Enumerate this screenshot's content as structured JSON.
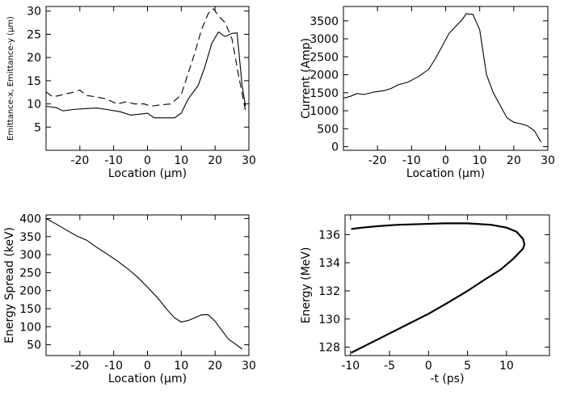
{
  "chart_data": [
    {
      "type": "line",
      "title": "",
      "xlabel": "Location (μm)",
      "ylabel": "Emittance-x, Emittance-y (μm)",
      "xlim": [
        -30,
        30
      ],
      "ylim": [
        0,
        31
      ],
      "xticks": [
        -20,
        -10,
        0,
        10,
        20,
        30
      ],
      "yticks": [
        5,
        10,
        15,
        20,
        25,
        30
      ],
      "grid": false,
      "series": [
        {
          "style": "solid",
          "points": [
            [
              -30,
              9.5
            ],
            [
              -27,
              9.2
            ],
            [
              -25,
              8.5
            ],
            [
              -22,
              8.8
            ],
            [
              -18,
              9
            ],
            [
              -15,
              9.1
            ],
            [
              -12,
              8.8
            ],
            [
              -8,
              8.3
            ],
            [
              -5,
              7.6
            ],
            [
              -2,
              7.8
            ],
            [
              0,
              8
            ],
            [
              2,
              7
            ],
            [
              5,
              7
            ],
            [
              8,
              7
            ],
            [
              10,
              8
            ],
            [
              12,
              11
            ],
            [
              15,
              14
            ],
            [
              17,
              18
            ],
            [
              19,
              23
            ],
            [
              21,
              25.5
            ],
            [
              23,
              24.5
            ],
            [
              25,
              25.2
            ],
            [
              26.5,
              25.3
            ],
            [
              28,
              14
            ],
            [
              29,
              9.5
            ]
          ]
        },
        {
          "style": "dashed",
          "points": [
            [
              -30,
              12.6
            ],
            [
              -28,
              11.5
            ],
            [
              -25,
              12
            ],
            [
              -22,
              12.5
            ],
            [
              -20,
              13
            ],
            [
              -18,
              11.8
            ],
            [
              -15,
              11.5
            ],
            [
              -12,
              11
            ],
            [
              -9,
              10
            ],
            [
              -6,
              10.5
            ],
            [
              -4,
              10
            ],
            [
              -1,
              10
            ],
            [
              1,
              9.5
            ],
            [
              4,
              9.8
            ],
            [
              7,
              10
            ],
            [
              10,
              12
            ],
            [
              12,
              16.5
            ],
            [
              14,
              21
            ],
            [
              16,
              26
            ],
            [
              18,
              29.5
            ],
            [
              19.5,
              30.5
            ],
            [
              21,
              29
            ],
            [
              23,
              27.5
            ],
            [
              25,
              24
            ],
            [
              27,
              16
            ],
            [
              29,
              8.5
            ]
          ]
        }
      ]
    },
    {
      "type": "line",
      "title": "",
      "xlabel": "Location (μm)",
      "ylabel": "Current (Amp)",
      "xlim": [
        -30,
        30
      ],
      "ylim": [
        -100,
        3900
      ],
      "xticks": [
        -20,
        -10,
        0,
        10,
        20,
        30
      ],
      "yticks": [
        0,
        500,
        1000,
        1500,
        2000,
        2500,
        3000,
        3500
      ],
      "grid": false,
      "series": [
        {
          "style": "solid",
          "points": [
            [
              -30,
              1350
            ],
            [
              -28,
              1400
            ],
            [
              -26,
              1480
            ],
            [
              -24,
              1450
            ],
            [
              -21,
              1520
            ],
            [
              -18,
              1560
            ],
            [
              -16,
              1620
            ],
            [
              -14,
              1720
            ],
            [
              -11,
              1800
            ],
            [
              -8,
              1950
            ],
            [
              -5,
              2150
            ],
            [
              -3,
              2450
            ],
            [
              -1,
              2800
            ],
            [
              1,
              3150
            ],
            [
              3,
              3350
            ],
            [
              5,
              3550
            ],
            [
              6,
              3700
            ],
            [
              8,
              3680
            ],
            [
              10,
              3250
            ],
            [
              12,
              2000
            ],
            [
              14,
              1500
            ],
            [
              16,
              1150
            ],
            [
              18,
              800
            ],
            [
              20,
              680
            ],
            [
              22,
              640
            ],
            [
              24,
              580
            ],
            [
              26,
              450
            ],
            [
              28,
              130
            ]
          ]
        }
      ]
    },
    {
      "type": "line",
      "title": "",
      "xlabel": "Location (μm)",
      "ylabel": "Energy Spread (keV)",
      "xlim": [
        -30,
        30
      ],
      "ylim": [
        20,
        410
      ],
      "xticks": [
        -20,
        -10,
        0,
        10,
        20,
        30
      ],
      "yticks": [
        50,
        100,
        150,
        200,
        250,
        300,
        350,
        400
      ],
      "grid": false,
      "series": [
        {
          "style": "solid",
          "points": [
            [
              -30,
              400
            ],
            [
              -27,
              385
            ],
            [
              -24,
              368
            ],
            [
              -21,
              352
            ],
            [
              -18,
              340
            ],
            [
              -15,
              320
            ],
            [
              -12,
              302
            ],
            [
              -9,
              283
            ],
            [
              -6,
              262
            ],
            [
              -3,
              238
            ],
            [
              0,
              210
            ],
            [
              3,
              180
            ],
            [
              6,
              145
            ],
            [
              8,
              125
            ],
            [
              10,
              113
            ],
            [
              12,
              117
            ],
            [
              14,
              125
            ],
            [
              16,
              133
            ],
            [
              18,
              133
            ],
            [
              20,
              115
            ],
            [
              22,
              90
            ],
            [
              24,
              65
            ],
            [
              26,
              52
            ],
            [
              28,
              38
            ]
          ]
        }
      ]
    },
    {
      "type": "line",
      "title": "",
      "xlabel": "-t (ps)",
      "ylabel": "Energy (MeV)",
      "xlim": [
        -10.7,
        15.5
      ],
      "ylim": [
        127.4,
        137.4
      ],
      "xticks": [
        -10,
        -5,
        0,
        5,
        10
      ],
      "yticks": [
        128,
        130,
        132,
        134,
        136
      ],
      "grid": false,
      "series": [
        {
          "style": "solid",
          "points": [
            [
              -9.9,
              127.6
            ],
            [
              -7.4,
              128.3
            ],
            [
              -4.9,
              129.0
            ],
            [
              -2.4,
              129.7
            ],
            [
              0.1,
              130.4
            ],
            [
              2.6,
              131.2
            ],
            [
              5.0,
              132.0
            ],
            [
              7.2,
              132.8
            ],
            [
              9.2,
              133.5
            ],
            [
              10.9,
              134.3
            ],
            [
              12.1,
              135.0
            ],
            [
              12.3,
              135.3
            ],
            [
              12.1,
              135.7
            ],
            [
              11.3,
              136.2
            ],
            [
              10.0,
              136.5
            ],
            [
              8.0,
              136.7
            ],
            [
              5.0,
              136.8
            ],
            [
              2.0,
              136.8
            ],
            [
              -1.0,
              136.75
            ],
            [
              -4.0,
              136.7
            ],
            [
              -6.5,
              136.6
            ],
            [
              -8.5,
              136.5
            ],
            [
              -9.9,
              136.4
            ]
          ]
        }
      ]
    }
  ]
}
